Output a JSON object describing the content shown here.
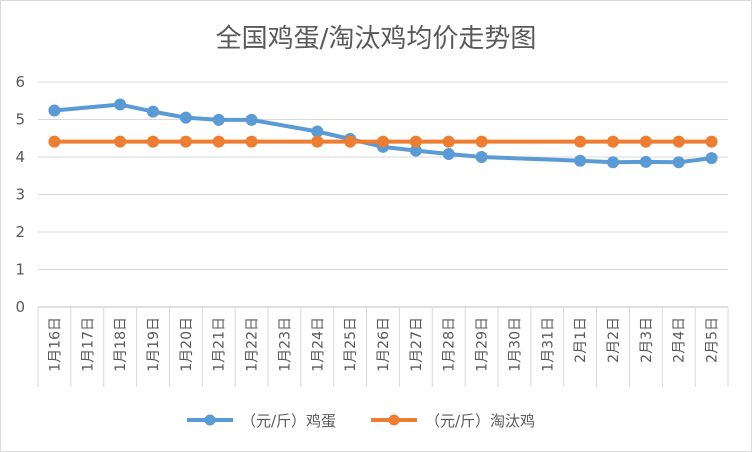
{
  "chart_data": {
    "type": "line",
    "title": "全国鸡蛋/淘汰鸡均价走势图",
    "xlabel": "",
    "ylabel": "",
    "ylim": [
      0,
      6
    ],
    "yticks": [
      "0",
      "1",
      "2",
      "3",
      "4",
      "5",
      "6"
    ],
    "categories": [
      "1月16日",
      "1月17日",
      "1月18日",
      "1月19日",
      "1月20日",
      "1月21日",
      "1月22日",
      "1月23日",
      "1月24日",
      "1月25日",
      "1月26日",
      "1月27日",
      "1月28日",
      "1月29日",
      "1月30日",
      "1月31日",
      "2月1日",
      "2月2日",
      "2月3日",
      "2月4日",
      "2月5日"
    ],
    "grid": true,
    "legend_position": "bottom",
    "series": [
      {
        "name": "（元/斤）鸡蛋",
        "color": "#5B9BD5",
        "values": [
          5.24,
          null,
          5.4,
          5.21,
          5.05,
          4.99,
          4.99,
          null,
          4.68,
          4.48,
          4.27,
          4.17,
          4.08,
          4.0,
          null,
          null,
          3.9,
          3.86,
          3.87,
          3.86,
          3.97
        ]
      },
      {
        "name": "（元/斤）淘汰鸡",
        "color": "#ED7D31",
        "values": [
          4.41,
          null,
          4.41,
          4.41,
          4.41,
          4.41,
          4.41,
          null,
          4.41,
          4.41,
          4.41,
          4.41,
          4.41,
          4.41,
          null,
          null,
          4.41,
          4.41,
          4.41,
          4.41,
          4.41
        ]
      }
    ]
  }
}
